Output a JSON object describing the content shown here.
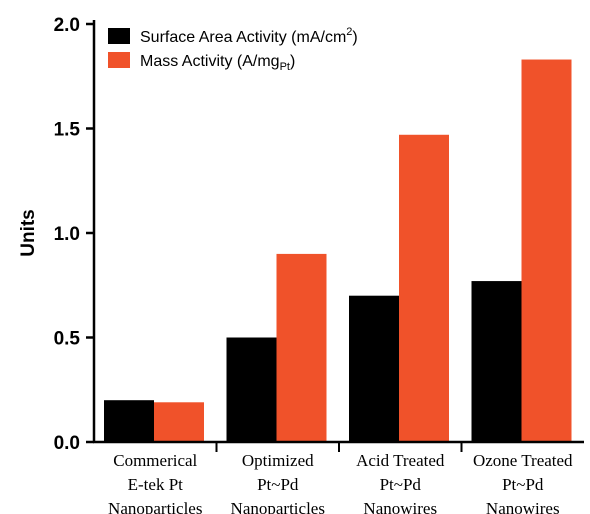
{
  "chart_data": {
    "type": "bar",
    "title": "",
    "xlabel": "",
    "ylabel": "Units",
    "ylim": [
      0,
      2.0
    ],
    "yticks": [
      "0.0",
      "0.5",
      "1.0",
      "1.5",
      "2.0"
    ],
    "grid": false,
    "legend_position": "top-left",
    "categories": [
      [
        "Commerical",
        "E-tek Pt",
        "Nanoparticles"
      ],
      [
        "Optimized",
        "Pt~Pd",
        "Nanoparticles"
      ],
      [
        "Acid Treated",
        "Pt~Pd",
        "Nanowires"
      ],
      [
        "Ozone Treated",
        "Pt~Pd",
        "Nanowires"
      ]
    ],
    "series": [
      {
        "name": "Surface Area Activity (mA/cm2)",
        "legend_main": "Surface Area Activity (mA/cm",
        "legend_sup": "2",
        "legend_tail": ")",
        "color": "#000000",
        "values": [
          0.2,
          0.5,
          0.7,
          0.77
        ]
      },
      {
        "name": "Mass Activity (A/mgPt)",
        "legend_main": "Mass Activity (A/mg",
        "legend_sub": "Pt",
        "legend_tail": ")",
        "color": "#f0522a",
        "values": [
          0.19,
          0.9,
          1.47,
          1.83
        ]
      }
    ]
  }
}
